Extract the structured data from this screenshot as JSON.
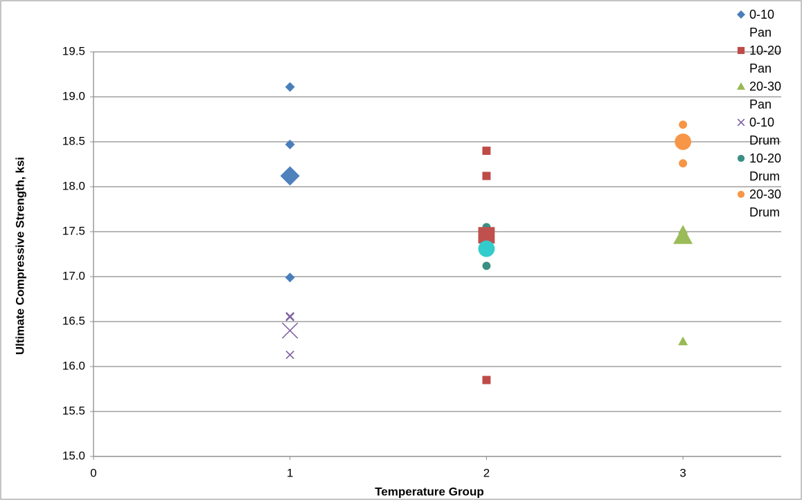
{
  "chart_data": {
    "type": "scatter",
    "x_label": "Temperature Group",
    "y_label": "Ultimate Compressive Strength, ksi",
    "xlim": [
      0,
      3.5
    ],
    "xticks": [
      0,
      1,
      2,
      3
    ],
    "ylim": [
      15,
      19.5
    ],
    "yticks": [
      {
        "value": 15,
        "label": "15.0"
      },
      15.5,
      {
        "value": 16,
        "label": "16.0"
      },
      16.5,
      {
        "value": 17,
        "label": "17.0"
      },
      17.5,
      {
        "value": 18,
        "label": "18.0"
      },
      18.5,
      {
        "value": 19,
        "label": "19.0"
      },
      19.5
    ],
    "grid": true,
    "legend": "right",
    "series": [
      {
        "name": "0-10 Pan",
        "color": "#4a7ebb",
        "marker": "diamond",
        "x": [
          1,
          1,
          1
        ],
        "values": [
          19.11,
          18.47,
          16.99
        ]
      },
      {
        "name": "10-20 Pan",
        "color": "#be4b48",
        "marker": "square",
        "x": [
          2,
          2,
          2
        ],
        "values": [
          18.4,
          18.12,
          15.85
        ]
      },
      {
        "name": "20-30 Pan",
        "color": "#98b954",
        "marker": "triangle",
        "x": [
          3,
          3
        ],
        "values": [
          17.52,
          16.28
        ]
      },
      {
        "name": "0-10 Drum",
        "color": "#7d60a0",
        "marker": "x",
        "x": [
          1,
          1,
          1
        ],
        "values": [
          16.56,
          16.55,
          16.13
        ]
      },
      {
        "name": "10-20 Drum",
        "color": "#3a8f82",
        "marker": "circle",
        "x": [
          2,
          2
        ],
        "values": [
          17.55,
          17.12
        ]
      },
      {
        "name": "20-30 Drum",
        "color": "#f79646",
        "marker": "circle",
        "x": [
          3,
          3
        ],
        "values": [
          18.69,
          18.26
        ]
      },
      {
        "color": "#4f81bd",
        "marker": "diamond",
        "large": true,
        "x": [
          1
        ],
        "values": [
          18.12
        ]
      },
      {
        "color": "#c0504d",
        "marker": "square",
        "large": true,
        "x": [
          2
        ],
        "values": [
          17.46
        ]
      },
      {
        "color": "#9bbb59",
        "marker": "triangle",
        "large": true,
        "x": [
          3
        ],
        "values": [
          17.45
        ]
      },
      {
        "color": "#8064a2",
        "marker": "x",
        "large": true,
        "x": [
          1
        ],
        "values": [
          16.4
        ]
      },
      {
        "color": "#33cccc",
        "marker": "circle",
        "large": true,
        "x": [
          2
        ],
        "values": [
          17.31
        ]
      },
      {
        "color": "#f79646",
        "marker": "circle",
        "large": true,
        "x": [
          3
        ],
        "values": [
          18.5
        ]
      }
    ]
  }
}
